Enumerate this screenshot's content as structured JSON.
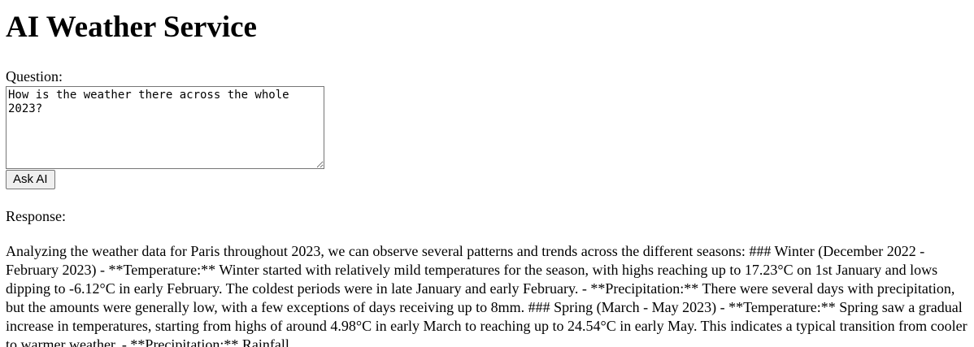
{
  "page": {
    "title": "AI Weather Service"
  },
  "question": {
    "label": "Question:",
    "value": "How is the weather there across the whole 2023?"
  },
  "actions": {
    "ask_label": "Ask AI"
  },
  "response": {
    "label": "Response:",
    "text": "Analyzing the weather data for Paris throughout 2023, we can observe several patterns and trends across the different seasons: ### Winter (December 2022 - February 2023) - **Temperature:** Winter started with relatively mild temperatures for the season, with highs reaching up to 17.23°C on 1st January and lows dipping to -6.12°C in early February. The coldest periods were in late January and early February. - **Precipitation:** There were several days with precipitation, but the amounts were generally low, with a few exceptions of days receiving up to 8mm. ### Spring (March - May 2023) - **Temperature:** Spring saw a gradual increase in temperatures, starting from highs of around 4.98°C in early March to reaching up to 24.54°C in early May. This indicates a typical transition from cooler to warmer weather. - **Precipitation:** Rainfall"
  }
}
